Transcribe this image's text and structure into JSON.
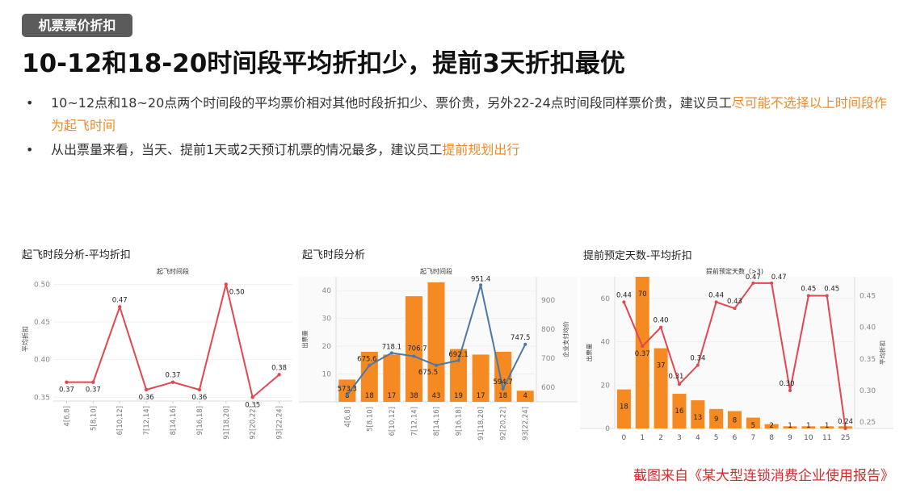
{
  "header": {
    "tag": "机票票价折扣",
    "title": "10-12和18-20时间段平均折扣少，提前3天折扣最优"
  },
  "bullets": [
    {
      "text": "10~12点和18~20点两个时间段的平均票价相对其他时段折扣少、票价贵，另外22-24点时间段同样票价贵，建议员工",
      "highlight": "尽可能不选择以上时间段作为起飞时间"
    },
    {
      "text": "从出票量来看，当天、提前1天或2天预订机票的情况最多，建议员工",
      "highlight": "提前规划出行"
    }
  ],
  "source": "截图来自《某大型连锁消费企业使用报告》",
  "colors": {
    "bar": "#f58a23",
    "line_red": "#e2474f",
    "line_blue": "#4a78a8",
    "accent": "#f28a2b",
    "source": "#d62b2b"
  },
  "chart_data": [
    {
      "type": "line",
      "panel_title": "起飞时段分析-平均折扣",
      "title": "起飞时间段",
      "categories": [
        "4[6,8]",
        "5[8,10]",
        "6[10,12]",
        "7[12,14]",
        "8[14,16]",
        "9[16,18]",
        "91[18,20]",
        "92[20,22]",
        "93[22,24]"
      ],
      "series": [
        {
          "values": [
            0.37,
            0.37,
            0.47,
            0.36,
            0.37,
            0.36,
            0.5,
            0.35,
            0.38
          ]
        }
      ],
      "ylabel": "平均折扣",
      "yticks": [
        "0.35",
        "0.40",
        "0.45",
        "0.50"
      ],
      "ylim": [
        0.345,
        0.51
      ]
    },
    {
      "type": "bar",
      "panel_title": "起飞时段分析",
      "title": "起飞时间段",
      "categories": [
        "4[6,8]",
        "5[8,10]",
        "6[10,12]",
        "7[12,14]",
        "8[14,16]",
        "9[16,18]",
        "91[18,20]",
        "92[20,22]",
        "93[22,24]"
      ],
      "series": [
        {
          "kind": "bar",
          "axis": "left",
          "values": [
            8,
            18,
            17,
            38,
            43,
            19,
            17,
            18,
            4
          ]
        },
        {
          "kind": "line",
          "axis": "right",
          "values": [
            573.3,
            675.6,
            718.1,
            706.7,
            675.5,
            692.1,
            951.4,
            594.7,
            747.5
          ]
        }
      ],
      "ylabel": "出票量",
      "y2label": "企业支付均价",
      "yticks": [
        "10",
        "20",
        "30",
        "40"
      ],
      "y2ticks": [
        "600",
        "700",
        "800",
        "900"
      ],
      "ylim": [
        0,
        45
      ],
      "y2lim": [
        550,
        980
      ]
    },
    {
      "type": "bar",
      "panel_title": "提前预定天数-平均折扣",
      "title": "提前预定天数（>3)",
      "categories": [
        "0",
        "1",
        "2",
        "3",
        "4",
        "5",
        "6",
        "7",
        "8",
        "9",
        "10",
        "11",
        "25"
      ],
      "series": [
        {
          "kind": "bar",
          "axis": "left",
          "values": [
            18,
            70,
            37,
            16,
            13,
            9,
            8,
            5,
            2,
            1,
            1,
            1,
            1
          ]
        },
        {
          "kind": "line",
          "axis": "right",
          "values": [
            0.44,
            0.37,
            0.4,
            0.31,
            0.34,
            0.44,
            0.43,
            0.47,
            0.47,
            0.3,
            0.45,
            0.45,
            0.24
          ]
        }
      ],
      "ylabel": "出票量",
      "y2label": "平均折扣",
      "yticks": [
        "0",
        "20",
        "40",
        "60"
      ],
      "y2ticks": [
        "0.25",
        "0.30",
        "0.35",
        "0.40",
        "0.45"
      ],
      "ylim": [
        0,
        70
      ],
      "y2lim": [
        0.24,
        0.48
      ]
    }
  ]
}
